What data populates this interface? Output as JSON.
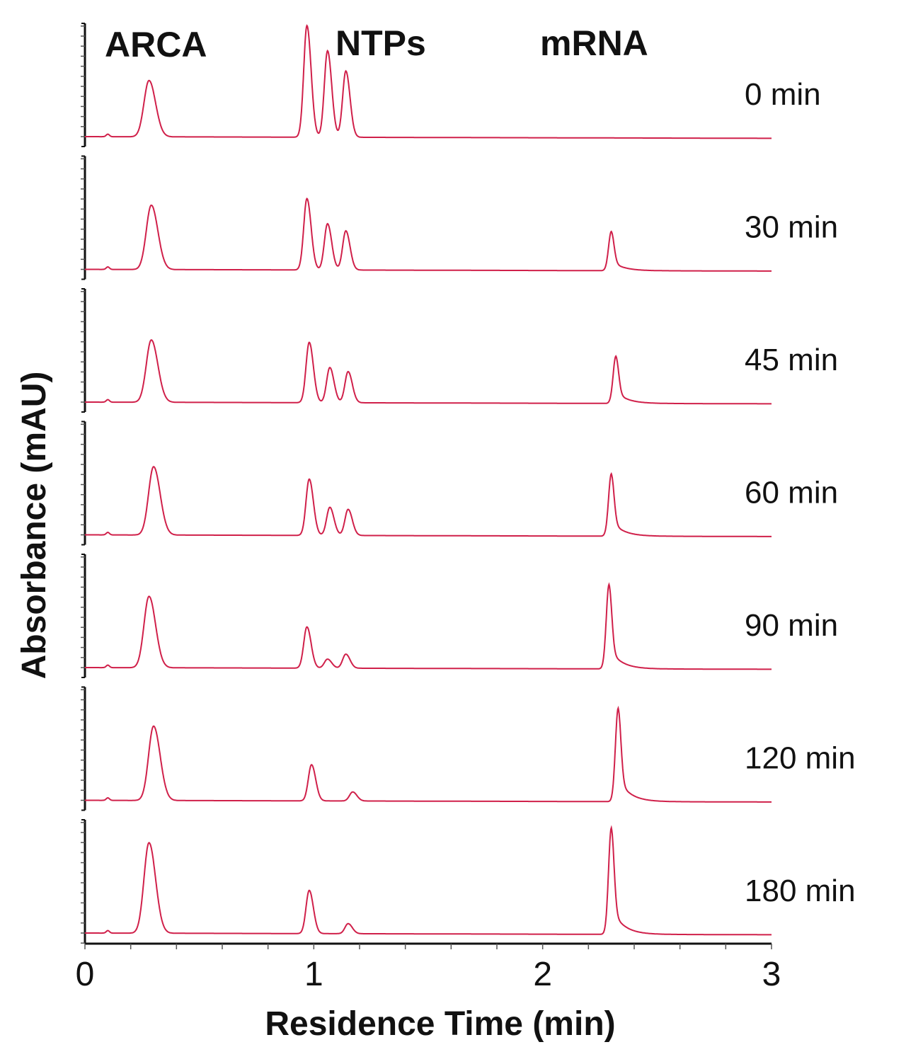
{
  "chart_data": {
    "type": "line",
    "title": "",
    "xlabel": "Residence Time (min)",
    "ylabel": "Absorbance (mAU)",
    "xlim": [
      0,
      3
    ],
    "xticks": [
      "0",
      "1",
      "2",
      "3"
    ],
    "ylim": [
      0,
      12
    ],
    "y_units_note_visible": false,
    "grid": false,
    "line_color": "#d0204a",
    "peak_labels": [
      "ARCA",
      "NTPs",
      "mRNA"
    ],
    "series": [
      {
        "name": "0 min",
        "peaks": [
          {
            "t": 0.28,
            "h": 5.6
          },
          {
            "t": 0.97,
            "h": 11.1
          },
          {
            "t": 1.06,
            "h": 8.6
          },
          {
            "t": 1.14,
            "h": 6.6
          }
        ]
      },
      {
        "name": "30 min",
        "peaks": [
          {
            "t": 0.29,
            "h": 6.4
          },
          {
            "t": 0.97,
            "h": 7.1
          },
          {
            "t": 1.06,
            "h": 4.6
          },
          {
            "t": 1.14,
            "h": 3.9
          },
          {
            "t": 2.3,
            "h": 3.9
          }
        ]
      },
      {
        "name": "45 min",
        "peaks": [
          {
            "t": 0.29,
            "h": 6.2
          },
          {
            "t": 0.98,
            "h": 6.0
          },
          {
            "t": 1.07,
            "h": 3.5
          },
          {
            "t": 1.15,
            "h": 3.1
          },
          {
            "t": 2.32,
            "h": 4.7
          }
        ]
      },
      {
        "name": "60 min",
        "peaks": [
          {
            "t": 0.3,
            "h": 6.8
          },
          {
            "t": 0.98,
            "h": 5.6
          },
          {
            "t": 1.07,
            "h": 2.8
          },
          {
            "t": 1.15,
            "h": 2.6
          },
          {
            "t": 2.3,
            "h": 6.2
          }
        ]
      },
      {
        "name": "90 min",
        "peaks": [
          {
            "t": 0.28,
            "h": 7.1
          },
          {
            "t": 0.97,
            "h": 4.1
          },
          {
            "t": 1.06,
            "h": 0.9
          },
          {
            "t": 1.14,
            "h": 1.4
          },
          {
            "t": 2.29,
            "h": 8.4
          }
        ]
      },
      {
        "name": "120 min",
        "peaks": [
          {
            "t": 0.3,
            "h": 7.4
          },
          {
            "t": 0.99,
            "h": 3.6
          },
          {
            "t": 1.17,
            "h": 0.9
          },
          {
            "t": 2.33,
            "h": 9.3
          }
        ]
      },
      {
        "name": "180 min",
        "peaks": [
          {
            "t": 0.28,
            "h": 9.0
          },
          {
            "t": 0.98,
            "h": 4.3
          },
          {
            "t": 1.15,
            "h": 1.0
          },
          {
            "t": 2.3,
            "h": 10.6
          }
        ]
      }
    ]
  }
}
